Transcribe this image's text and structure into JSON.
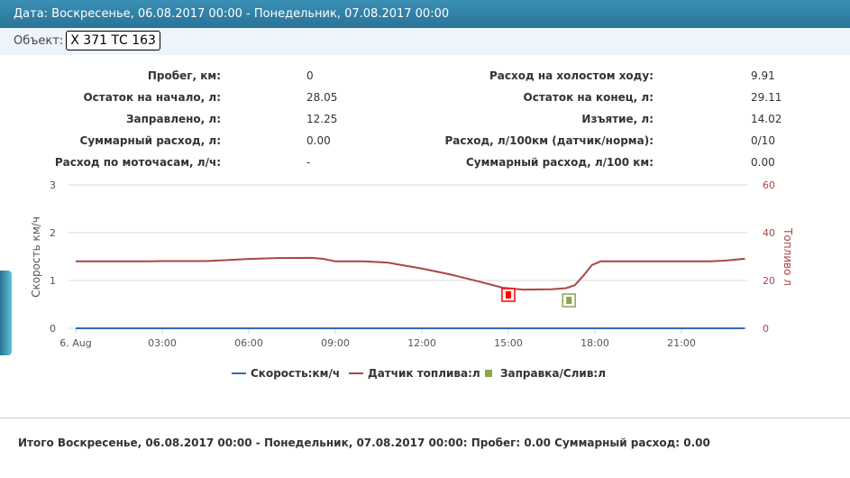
{
  "header": {
    "title": "Дата: Воскресенье, 06.08.2017 00:00 - Понедельник, 07.08.2017 00:00"
  },
  "object": {
    "label": "Объект:",
    "value": "Х 371 ТС 163"
  },
  "stats_left": [
    {
      "label": "Пробег, км:",
      "value": "0"
    },
    {
      "label": "Остаток на начало, л:",
      "value": "28.05"
    },
    {
      "label": "Заправлено, л:",
      "value": "12.25"
    },
    {
      "label": "Суммарный расход, л:",
      "value": "0.00"
    },
    {
      "label": "Расход по моточасам, л/ч:",
      "value": "-"
    }
  ],
  "stats_right": [
    {
      "label": "Расход на холостом ходу:",
      "value": "9.91"
    },
    {
      "label": "Остаток на конец, л:",
      "value": "29.11"
    },
    {
      "label": "Изъятие, л:",
      "value": "14.02"
    },
    {
      "label": "Расход, л/100км (датчик/норма):",
      "value": "0/10"
    },
    {
      "label": "Суммарный расход, л/100 км:",
      "value": "0.00"
    }
  ],
  "chart_data": {
    "type": "line",
    "x_unit": "hours from 06.08.2017 00:00",
    "x_ticks": [
      "6. Aug",
      "03:00",
      "06:00",
      "09:00",
      "12:00",
      "15:00",
      "18:00",
      "21:00"
    ],
    "x_range": [
      0,
      23.2
    ],
    "y_left": {
      "label": "Скорость км/ч",
      "range": [
        0,
        3
      ],
      "ticks": [
        "0",
        "1",
        "2",
        "3"
      ]
    },
    "y_right": {
      "label": "Топливо л",
      "range": [
        0,
        60
      ],
      "ticks": [
        "0",
        "20",
        "40",
        "60"
      ]
    },
    "grid": true,
    "legend_placement": "bottom",
    "series": [
      {
        "name": "Скорость:км/ч",
        "axis": "left",
        "color": "#2f6db5",
        "points": [
          [
            0,
            0
          ],
          [
            23.2,
            0
          ]
        ]
      },
      {
        "name": "Датчик топлива:л",
        "axis": "right",
        "color": "#aa4643",
        "points": [
          [
            0,
            28
          ],
          [
            2.5,
            28
          ],
          [
            3,
            28.1
          ],
          [
            4.5,
            28.1
          ],
          [
            6,
            29
          ],
          [
            7,
            29.4
          ],
          [
            8.2,
            29.5
          ],
          [
            8.6,
            29
          ],
          [
            9,
            28
          ],
          [
            10,
            28
          ],
          [
            10.8,
            27.5
          ],
          [
            12,
            25
          ],
          [
            13,
            22.5
          ],
          [
            14,
            19.5
          ],
          [
            14.8,
            17
          ],
          [
            15.5,
            16.2
          ],
          [
            16.5,
            16.3
          ],
          [
            17,
            16.8
          ],
          [
            17.3,
            18
          ],
          [
            17.6,
            22
          ],
          [
            17.9,
            26.5
          ],
          [
            18.2,
            28
          ],
          [
            21,
            28
          ],
          [
            22,
            28
          ],
          [
            22.5,
            28.3
          ],
          [
            23.2,
            29.1
          ]
        ]
      }
    ],
    "events": {
      "name": "Заправка/Слив:л",
      "color": "#89a54e",
      "items": [
        {
          "type": "drain",
          "time": 15.0,
          "value": 14.02,
          "color": "#ff0000"
        },
        {
          "type": "fill",
          "time": 17.1,
          "value": 12.25,
          "color": "#89a54e"
        }
      ]
    }
  },
  "footer": "Итого Воскресенье, 06.08.2017 00:00 - Понедельник, 07.08.2017 00:00: Пробег: 0.00 Суммарный расход: 0.00"
}
